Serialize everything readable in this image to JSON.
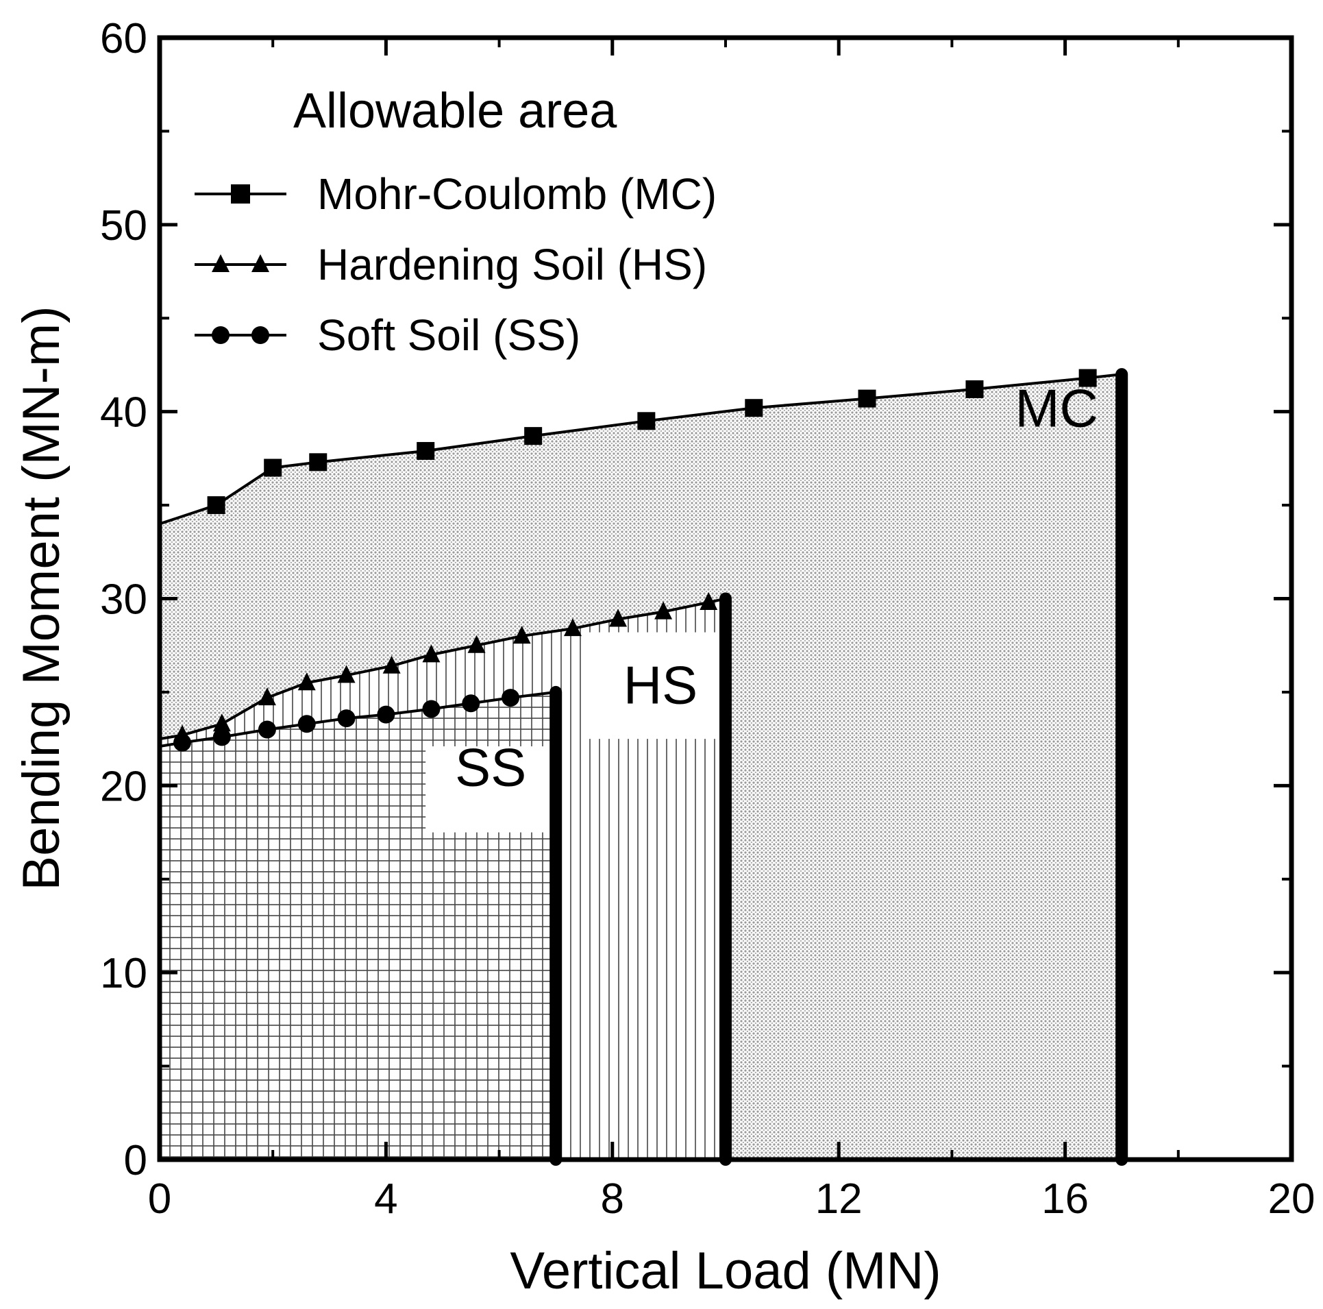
{
  "chart_data": {
    "type": "line",
    "xlabel": "Vertical Load (MN)",
    "ylabel": "Bending Moment (MN-m)",
    "xlim": [
      0,
      20
    ],
    "ylim": [
      0,
      60
    ],
    "xticks": [
      "0",
      "4",
      "8",
      "12",
      "16",
      "20"
    ],
    "yticks": [
      "0",
      "10",
      "20",
      "30",
      "40",
      "50",
      "60"
    ],
    "legend_title": "Allowable area",
    "legend_position": "top-left",
    "series": [
      {
        "name": "Mohr-Coulomb (MC)",
        "key": "MC",
        "marker": "square",
        "region_label": "MC",
        "limit_x": 17,
        "hatch": "dots",
        "points": [
          [
            0,
            34
          ],
          [
            1,
            35
          ],
          [
            2,
            37
          ],
          [
            2.8,
            37.3
          ],
          [
            4.7,
            37.9
          ],
          [
            6.6,
            38.7
          ],
          [
            8.6,
            39.5
          ],
          [
            10.5,
            40.2
          ],
          [
            12.5,
            40.7
          ],
          [
            14.4,
            41.2
          ],
          [
            16.4,
            41.8
          ],
          [
            17,
            42
          ]
        ]
      },
      {
        "name": "Hardening Soil (HS)",
        "key": "HS",
        "marker": "triangle",
        "region_label": "HS",
        "limit_x": 10,
        "hatch": "vertical",
        "points": [
          [
            0,
            22.5
          ],
          [
            0.4,
            22.7
          ],
          [
            1.1,
            23.3
          ],
          [
            1.9,
            24.7
          ],
          [
            2.6,
            25.5
          ],
          [
            3.3,
            25.9
          ],
          [
            4.1,
            26.4
          ],
          [
            4.8,
            27
          ],
          [
            5.6,
            27.5
          ],
          [
            6.4,
            28
          ],
          [
            7.3,
            28.4
          ],
          [
            8.1,
            28.9
          ],
          [
            8.9,
            29.3
          ],
          [
            9.7,
            29.8
          ],
          [
            10,
            30
          ]
        ]
      },
      {
        "name": "Soft Soil (SS)",
        "key": "SS",
        "marker": "circle",
        "region_label": "SS",
        "limit_x": 7,
        "hatch": "grid",
        "points": [
          [
            0,
            22.1
          ],
          [
            0.4,
            22.3
          ],
          [
            1.1,
            22.6
          ],
          [
            1.9,
            23
          ],
          [
            2.6,
            23.3
          ],
          [
            3.3,
            23.6
          ],
          [
            4,
            23.8
          ],
          [
            4.8,
            24.1
          ],
          [
            5.5,
            24.4
          ],
          [
            6.2,
            24.7
          ],
          [
            7,
            25
          ]
        ]
      }
    ]
  }
}
